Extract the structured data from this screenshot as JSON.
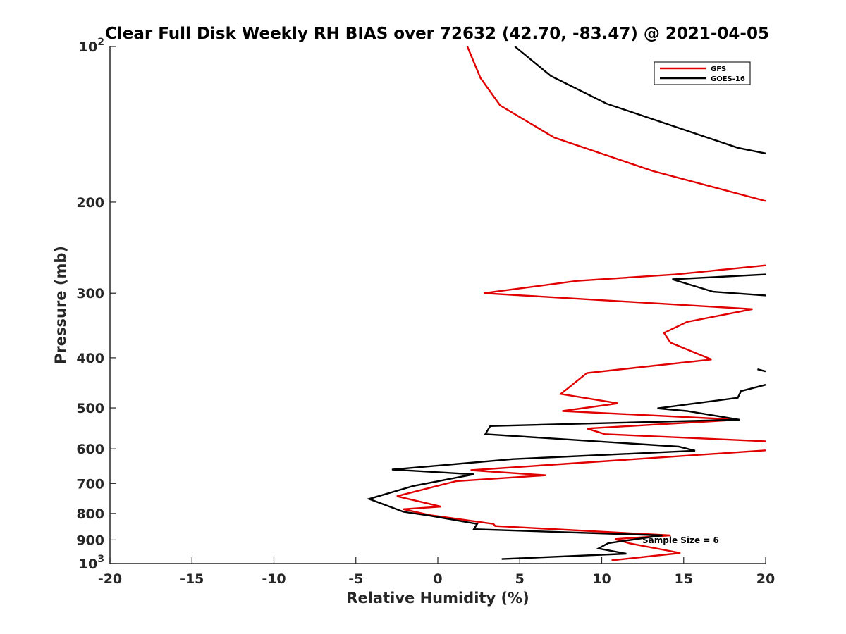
{
  "chart_data": {
    "type": "line",
    "title": "Clear Full Disk Weekly RH BIAS over 72632 (42.70, -83.47) @ 2021-04-05",
    "xlabel": "Relative Humidity (%)",
    "ylabel": "Pressure (mb)",
    "xlim": [
      -20,
      20
    ],
    "ylim": [
      100,
      1000
    ],
    "y_scale": "log",
    "y_reversed": true,
    "grid": false,
    "legend_position": "top-right",
    "x_ticks": [
      "-20",
      "-15",
      "-10",
      "-5",
      "0",
      "5",
      "10",
      "15",
      "20"
    ],
    "y_ticks": [
      {
        "value": 100,
        "base": "10",
        "exp": "2"
      },
      {
        "value": 200,
        "base": "200",
        "exp": ""
      },
      {
        "value": 300,
        "base": "300",
        "exp": ""
      },
      {
        "value": 400,
        "base": "400",
        "exp": ""
      },
      {
        "value": 500,
        "base": "500",
        "exp": ""
      },
      {
        "value": 600,
        "base": "600",
        "exp": ""
      },
      {
        "value": 700,
        "base": "700",
        "exp": ""
      },
      {
        "value": 800,
        "base": "800",
        "exp": ""
      },
      {
        "value": 900,
        "base": "900",
        "exp": ""
      },
      {
        "value": 1000,
        "base": "10",
        "exp": "3"
      }
    ],
    "annotation": "Sample Size = 6",
    "series": [
      {
        "name": "GFS",
        "color": "#e00000",
        "points": [
          [
            1.8,
            100
          ],
          [
            2.6,
            115
          ],
          [
            3.8,
            130
          ],
          [
            7.1,
            150
          ],
          [
            13.1,
            174
          ],
          [
            20.0,
            199
          ],
          null,
          [
            20.0,
            265
          ],
          [
            14.5,
            276
          ],
          [
            8.5,
            284
          ],
          [
            2.8,
            300
          ],
          [
            19.2,
            322
          ],
          [
            15.2,
            341
          ],
          [
            13.8,
            358
          ],
          [
            14.2,
            374
          ],
          [
            16.7,
            403
          ],
          [
            9.1,
            428
          ],
          [
            7.5,
            470
          ],
          [
            11.0,
            490
          ],
          [
            7.6,
            507
          ],
          [
            18.4,
            527
          ],
          [
            9.1,
            548
          ],
          [
            10.2,
            562
          ],
          [
            20.0,
            580
          ],
          null,
          [
            20.0,
            604
          ],
          [
            2.0,
            660
          ],
          [
            6.6,
            675
          ],
          [
            1.1,
            693
          ],
          [
            -2.5,
            741
          ],
          [
            0.2,
            776
          ],
          [
            -2.1,
            785
          ],
          [
            -0.5,
            806
          ],
          [
            3.4,
            838
          ],
          [
            3.5,
            846
          ],
          [
            14.2,
            882
          ],
          [
            10.8,
            897
          ],
          [
            11.7,
            914
          ],
          [
            14.8,
            954
          ],
          [
            10.6,
            986
          ]
        ]
      },
      {
        "name": "GOES-16",
        "color": "#000000",
        "points": [
          [
            4.7,
            100
          ],
          [
            6.9,
            114
          ],
          [
            10.3,
            129
          ],
          [
            18.3,
            157
          ],
          [
            20.0,
            161
          ],
          null,
          [
            20.0,
            276
          ],
          [
            14.3,
            282
          ],
          [
            16.8,
            298
          ],
          [
            20.0,
            303
          ],
          null,
          [
            19.5,
            421
          ],
          [
            20.0,
            425
          ],
          null,
          [
            20.0,
            451
          ],
          [
            18.5,
            464
          ],
          [
            18.3,
            478
          ],
          [
            13.4,
            501
          ],
          [
            15.2,
            507
          ],
          [
            18.4,
            527
          ],
          [
            3.2,
            542
          ],
          [
            2.9,
            562
          ],
          [
            14.7,
            594
          ],
          [
            15.7,
            605
          ],
          [
            4.6,
            628
          ],
          [
            -2.8,
            658
          ],
          [
            2.2,
            672
          ],
          [
            -1.5,
            708
          ],
          [
            -4.2,
            750
          ],
          [
            -2.1,
            794
          ],
          [
            -0.5,
            808
          ],
          [
            2.4,
            838
          ],
          [
            2.2,
            858
          ],
          [
            13.7,
            882
          ],
          [
            10.4,
            913
          ],
          [
            9.8,
            935
          ],
          [
            11.5,
            957
          ],
          [
            3.9,
            980
          ]
        ]
      }
    ]
  }
}
